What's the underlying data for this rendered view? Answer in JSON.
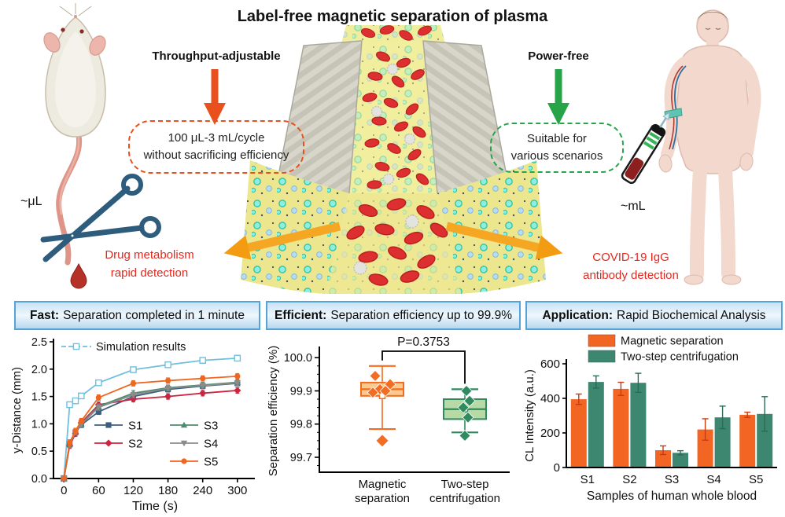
{
  "title": "Label-free magnetic separation of plasma",
  "illustration": {
    "throughput_label": "Throughput-adjustable",
    "throughput_box": [
      "100 μL-3 mL/cycle",
      "without sacrificing efficiency"
    ],
    "power_label": "Power-free",
    "power_box": [
      "Suitable for",
      "various scenarios"
    ],
    "mouse_scale": "~μL",
    "human_scale": "~mL",
    "left_application": [
      "Drug metabolism",
      "rapid detection"
    ],
    "right_application": [
      "COVID-19 IgG",
      "antibody detection"
    ]
  },
  "panels": [
    {
      "prefix": "Fast:",
      "text": "Separation completed in 1 minute"
    },
    {
      "prefix": "Efficient:",
      "text": "Separation efficiency up to 99.9%"
    },
    {
      "prefix": "Application:",
      "text": "Rapid Biochemical Analysis"
    }
  ],
  "colors": {
    "orange_accent": "#e8501e",
    "green_accent": "#27a348",
    "red_text": "#e2291f",
    "header_border": "#55a4d8",
    "big_arrow": "#f5a623"
  },
  "chart_data": [
    {
      "type": "line",
      "xlabel": "Time (s)",
      "ylabel": "y-Distance (mm)",
      "x": [
        0,
        10,
        20,
        30,
        60,
        120,
        180,
        240,
        300
      ],
      "xticks": [
        0,
        60,
        120,
        180,
        240,
        300
      ],
      "yticks": [
        0.0,
        0.5,
        1.0,
        1.5,
        2.0,
        2.5
      ],
      "ylim": [
        0,
        2.5
      ],
      "error": 0.05,
      "series": [
        {
          "name": "Simulation results",
          "color": "#6fbfdf",
          "marker": "square-open",
          "values": [
            0,
            1.35,
            1.42,
            1.51,
            1.75,
            1.99,
            2.08,
            2.16,
            2.2
          ]
        },
        {
          "name": "S1",
          "color": "#3c5f7f",
          "marker": "square",
          "values": [
            0,
            0.62,
            0.84,
            0.98,
            1.22,
            1.5,
            1.63,
            1.69,
            1.74
          ]
        },
        {
          "name": "S2",
          "color": "#cf2440",
          "marker": "diamond",
          "values": [
            0,
            0.6,
            0.82,
            1.02,
            1.35,
            1.45,
            1.5,
            1.56,
            1.61
          ]
        },
        {
          "name": "S3",
          "color": "#4d8c6e",
          "marker": "triangle-up",
          "values": [
            0,
            0.63,
            0.86,
            1.0,
            1.32,
            1.56,
            1.66,
            1.71,
            1.76
          ]
        },
        {
          "name": "S4",
          "color": "#8b8b8b",
          "marker": "triangle-down",
          "values": [
            0,
            0.62,
            0.85,
            0.99,
            1.3,
            1.53,
            1.65,
            1.7,
            1.75
          ]
        },
        {
          "name": "S5",
          "color": "#f1661f",
          "marker": "circle",
          "values": [
            0,
            0.66,
            0.87,
            1.05,
            1.48,
            1.74,
            1.79,
            1.83,
            1.87
          ]
        }
      ]
    },
    {
      "type": "box",
      "ylabel": "Separation efficiency (%)",
      "yticks": [
        99.7,
        99.8,
        99.9,
        100.0
      ],
      "ylim": [
        99.655,
        100.01
      ],
      "p_label": "P=0.3753",
      "groups": [
        {
          "label": [
            "Magnetic",
            "separation"
          ],
          "color": "#f26c21",
          "fill": "#fbc98e",
          "whisker_low": 99.785,
          "q1": 99.885,
          "median": 99.905,
          "q3": 99.925,
          "whisker_high": 99.975,
          "mean": 99.885,
          "points": [
            99.945,
            99.92,
            99.905,
            99.9,
            99.895
          ],
          "outliers": [
            99.75
          ]
        },
        {
          "label": [
            "Two-step",
            "centrifugation"
          ],
          "color": "#2f8a60",
          "fill": "#b7d9a4",
          "whisker_low": 99.775,
          "q1": 99.815,
          "median": 99.845,
          "q3": 99.875,
          "whisker_high": 99.905,
          "mean": 99.845,
          "points": [
            99.9,
            99.87,
            99.85,
            99.82,
            99.765
          ],
          "outliers": []
        }
      ]
    },
    {
      "type": "bar",
      "xlabel": "Samples of human whole blood",
      "ylabel": "CL Intensity (a.u.)",
      "categories": [
        "S1",
        "S2",
        "S3",
        "S4",
        "S5"
      ],
      "yticks": [
        0,
        200,
        400,
        600
      ],
      "ylim": [
        0,
        600
      ],
      "series": [
        {
          "name": "Magnetic separation",
          "color": "#f26522",
          "error_color": "#c43d12",
          "values": [
            395,
            455,
            100,
            220,
            305
          ],
          "errors": [
            30,
            38,
            25,
            62,
            15
          ]
        },
        {
          "name": "Two-step centrifugation",
          "color": "#3d8670",
          "error_color": "#2b6b55",
          "values": [
            495,
            490,
            85,
            290,
            310
          ],
          "errors": [
            35,
            55,
            12,
            65,
            100
          ]
        }
      ]
    }
  ]
}
